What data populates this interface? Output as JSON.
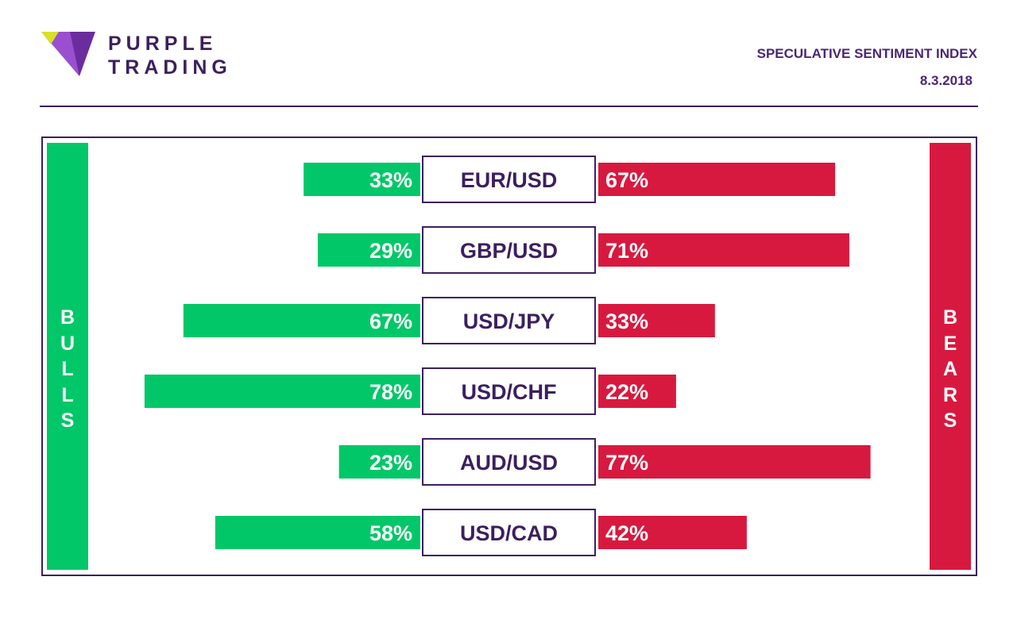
{
  "brand": {
    "line1": "PURPLE",
    "line2": "TRADING",
    "icon": "purple-trading-logo-icon"
  },
  "header": {
    "title": "SPECULATIVE SENTIMENT INDEX",
    "date": "8.3.2018"
  },
  "labels": {
    "bulls": "BULLS",
    "bears": "BEARS"
  },
  "colors": {
    "bulls": "#02c768",
    "bears": "#d8193f",
    "brand": "#3c1f5f"
  },
  "chart_data": {
    "type": "bar",
    "orientation": "horizontal-diverging",
    "categories": [
      "EUR/USD",
      "GBP/USD",
      "USD/JPY",
      "USD/CHF",
      "AUD/USD",
      "USD/CAD"
    ],
    "series": [
      {
        "name": "BULLS",
        "values": [
          33,
          29,
          67,
          78,
          23,
          58
        ]
      },
      {
        "name": "BEARS",
        "values": [
          67,
          71,
          33,
          22,
          77,
          42
        ]
      }
    ],
    "value_suffix": "%",
    "xlim": [
      0,
      100
    ],
    "grid": false
  }
}
